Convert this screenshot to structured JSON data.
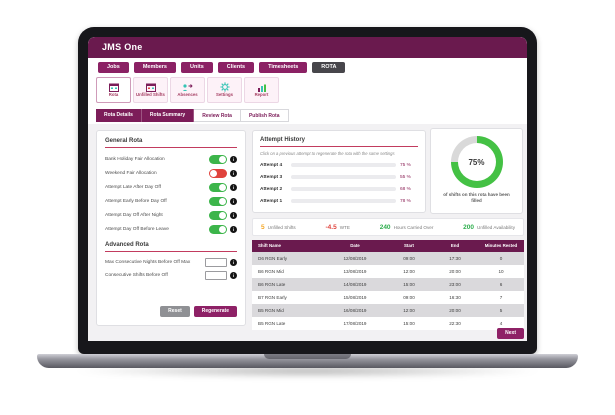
{
  "app_title": "JMS One",
  "primary_nav": {
    "items": [
      {
        "label": "Jobs"
      },
      {
        "label": "Members"
      },
      {
        "label": "Units"
      },
      {
        "label": "Clients"
      },
      {
        "label": "Timesheets"
      },
      {
        "label": "ROTA"
      }
    ]
  },
  "secondary_nav": {
    "items": [
      {
        "label": "Rota",
        "icon": "rota-calendar-icon"
      },
      {
        "label": "Unfilled Shifts",
        "icon": "unfilled-shifts-icon"
      },
      {
        "label": "Absences",
        "icon": "absences-icon"
      },
      {
        "label": "Settings",
        "icon": "settings-gear-icon"
      },
      {
        "label": "Report",
        "icon": "report-chart-icon"
      }
    ]
  },
  "tabs": {
    "items": [
      {
        "label": "Rota Details"
      },
      {
        "label": "Rota Summary"
      },
      {
        "label": "Review Rota"
      },
      {
        "label": "Publish Rota"
      }
    ]
  },
  "general_rota": {
    "title": "General Rota",
    "toggles": [
      {
        "label": "Bank Holiday Fair Allocation",
        "state": "on"
      },
      {
        "label": "Weekend Fair Allocation",
        "state": "off"
      },
      {
        "label": "Attempt Late After Day Off",
        "state": "on"
      },
      {
        "label": "Attempt Early Before Day Off",
        "state": "on"
      },
      {
        "label": "Attempt Day Off After Night",
        "state": "on"
      },
      {
        "label": "Attempt Day Off Before Leave",
        "state": "on"
      }
    ]
  },
  "advanced_rota": {
    "title": "Advanced Rota",
    "fields": [
      {
        "label": "Max Consecutive Nights Before Off Max",
        "value": ""
      },
      {
        "label": "Consecutive Shifts Before Off",
        "value": ""
      }
    ]
  },
  "buttons": {
    "reset": "Reset",
    "regenerate": "Regenerate",
    "next": "Next"
  },
  "attempt_history": {
    "title": "Attempt History",
    "subtitle": "Click on a previous attempt to regenerate the rota with the same settings"
  },
  "donut": {
    "center_label": "75%",
    "caption": "of shifts on this rota have been filled"
  },
  "stats": {
    "items": [
      {
        "value": "5",
        "label": "Unfilled Shifts",
        "color": "#f5a623"
      },
      {
        "value": "-4.5",
        "label": "WTE",
        "color": "#e0433d"
      },
      {
        "value": "240",
        "label": "Hours Carried Over",
        "color": "#2eae4e"
      },
      {
        "value": "200",
        "label": "Unfilled Availability",
        "color": "#2eae4e"
      }
    ]
  },
  "table": {
    "headers": [
      "Shift Name",
      "Date",
      "Start",
      "End",
      "Minutes Rested"
    ],
    "rows": [
      [
        "D6 RGN Early",
        "12/08/2019",
        "09:00",
        "17:30",
        "0"
      ],
      [
        "B6 RGN Mid",
        "13/08/2019",
        "12:00",
        "20:00",
        "10"
      ],
      [
        "B6 RGN Late",
        "14/08/2019",
        "15:00",
        "23:00",
        "6"
      ],
      [
        "B7 RGN Early",
        "15/08/2019",
        "09:00",
        "16:30",
        "7"
      ],
      [
        "B5 RGN Mid",
        "16/08/2019",
        "12:00",
        "20:00",
        "5"
      ],
      [
        "B5 RGN Late",
        "17/08/2019",
        "15:00",
        "22:30",
        "4"
      ]
    ]
  },
  "colors": {
    "brand": "#6a1a4e",
    "accent": "#c23b5e",
    "toggle_on": "#3cb54a",
    "toggle_off": "#e0433d"
  },
  "chart_data": [
    {
      "type": "bar",
      "orientation": "horizontal",
      "title": "Attempt History",
      "categories": [
        "Attempt 4",
        "Attempt 3",
        "Attempt 2",
        "Attempt 1"
      ],
      "values": [
        75,
        55,
        68,
        78
      ],
      "value_labels": [
        "75 %",
        "55 %",
        "68 %",
        "78 %"
      ],
      "colors": [
        "#2db92d",
        "#f5a623",
        "#f5a623",
        "#2db92d"
      ],
      "xlim": [
        0,
        100
      ],
      "legend": "none"
    },
    {
      "type": "pie",
      "title": "Shifts filled on this rota",
      "labels": [
        "filled",
        "unfilled"
      ],
      "values": [
        75,
        25
      ],
      "colors": [
        "#44c144",
        "#d9d9d9"
      ],
      "center_label": "75%",
      "caption": "of shifts on this rota have been filled"
    }
  ]
}
